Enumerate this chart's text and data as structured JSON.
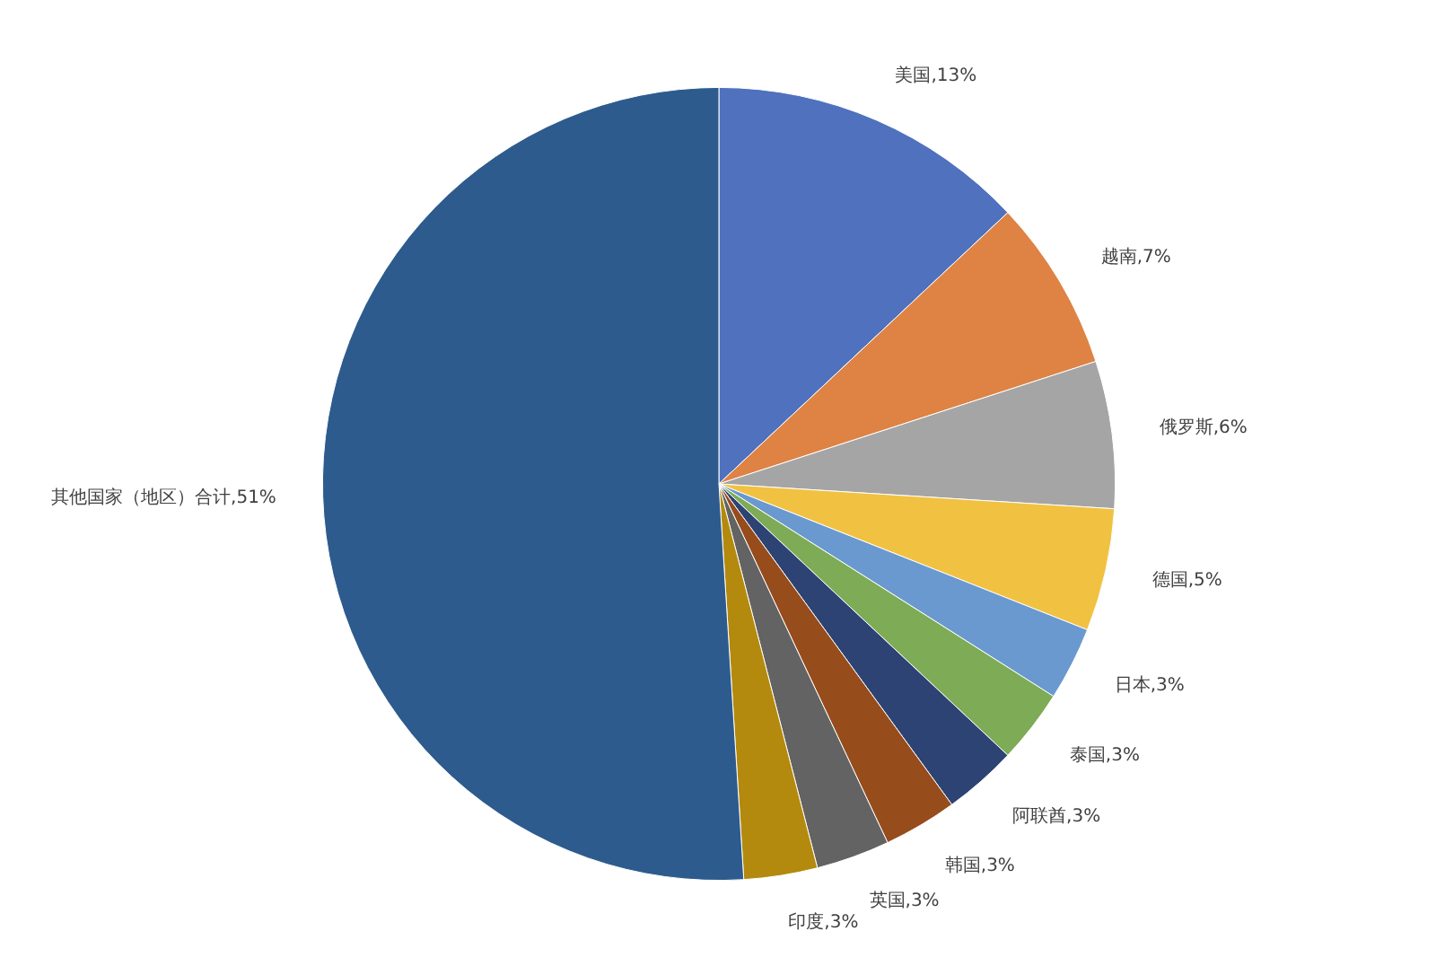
{
  "chart_data": {
    "type": "pie",
    "categories": [
      "美国",
      "越南",
      "俄罗斯",
      "德国",
      "日本",
      "泰国",
      "阿联酋",
      "韩国",
      "英国",
      "印度",
      "其他国家（地区）合计"
    ],
    "values": [
      13,
      7,
      6,
      5,
      3,
      3,
      3,
      3,
      3,
      3,
      51
    ],
    "colors": [
      "#4f71be",
      "#de8344",
      "#a5a5a5",
      "#f1c142",
      "#6a99d0",
      "#7eab55",
      "#2d4374",
      "#974c1c",
      "#636363",
      "#b38a0d",
      "#2d5b8e"
    ],
    "value_labels": [
      ",13%",
      ",7%",
      ",6%",
      ",5%",
      ",3%",
      ",3%",
      ",3%",
      ",3%",
      ",3%",
      ",3%",
      ",51%"
    ]
  }
}
